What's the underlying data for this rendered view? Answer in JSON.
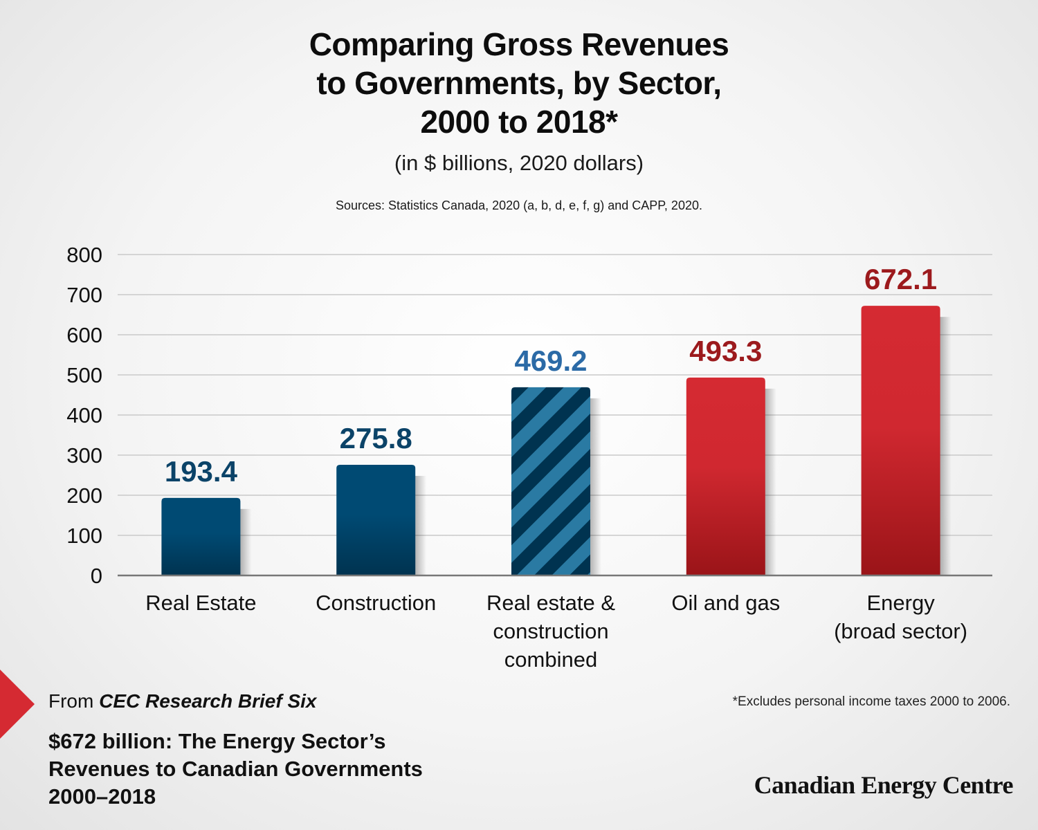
{
  "title_lines": [
    "Comparing Gross Revenues",
    "to Governments, by Sector,",
    "2000 to 2018*"
  ],
  "subtitle": "(in $ billions, 2020 dollars)",
  "sources": "Sources: Statistics Canada, 2020 (a, b, d, e, f, g) and CAPP, 2020.",
  "footer": {
    "from_prefix": "From ",
    "from_title": "CEC Research Brief Six",
    "report_title_lines": [
      "$672 billion: The Energy Sector’s",
      "Revenues to Canadian Governments",
      "2000–2018"
    ],
    "footnote": "*Excludes personal income taxes 2000 to 2006.",
    "logo": "Canadian Energy Centre"
  },
  "colors": {
    "navy": "#004a73",
    "navy_dark": "#003350",
    "stripe_light": "#2a7aa3",
    "red": "#d52a32",
    "red_dark": "#9a1418",
    "label_blue": "#0b4368",
    "label_lightblue": "#2b6aa6",
    "label_red": "#9c1a1d",
    "grid": "#c9c9c9",
    "axis": "#777777"
  },
  "chart_data": {
    "type": "bar",
    "categories": [
      [
        "Real Estate"
      ],
      [
        "Construction"
      ],
      [
        "Real estate &",
        "construction",
        "combined"
      ],
      [
        "Oil and gas"
      ],
      [
        "Energy",
        "(broad sector)"
      ]
    ],
    "values": [
      193.4,
      275.8,
      469.2,
      493.3,
      672.1
    ],
    "value_labels": [
      "193.4",
      "275.8",
      "469.2",
      "493.3",
      "672.1"
    ],
    "styles": [
      "navy",
      "navy",
      "striped",
      "red",
      "red"
    ],
    "label_colors": [
      "label_blue",
      "label_blue",
      "label_lightblue",
      "label_red",
      "label_red"
    ],
    "ylim": [
      0,
      800
    ],
    "yticks": [
      0,
      100,
      200,
      300,
      400,
      500,
      600,
      700,
      800
    ],
    "grid": true
  }
}
